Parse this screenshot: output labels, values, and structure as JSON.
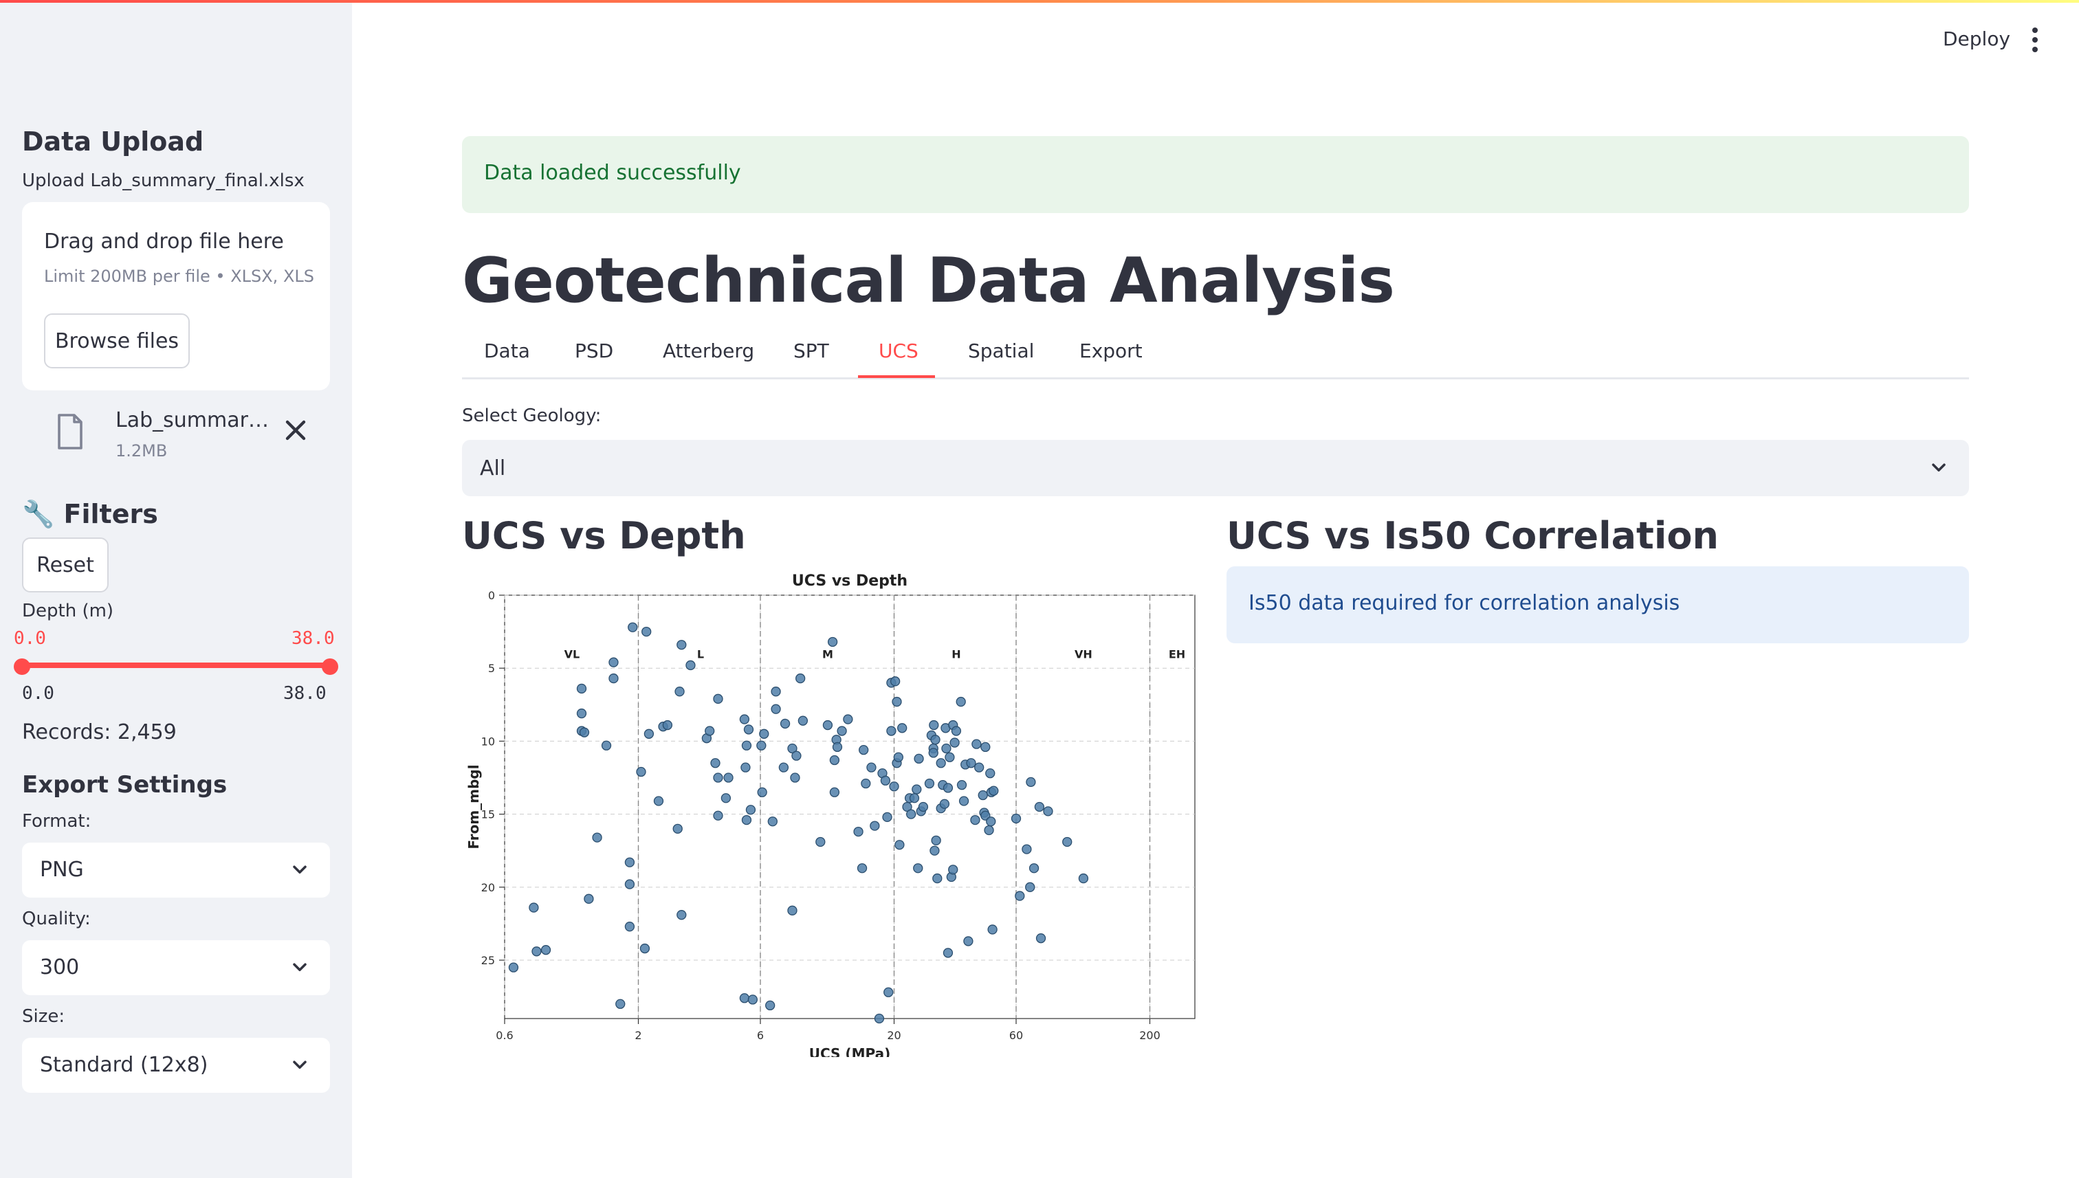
{
  "sidebar": {
    "upload_heading": "Data Upload",
    "upload_label": "Upload Lab_summary_final.xlsx",
    "dropzone_title": "Drag and drop file here",
    "dropzone_limit": "Limit 200MB per file • XLSX, XLS",
    "browse_label": "Browse files",
    "file_name": "Lab_summary_final.xlsx",
    "file_size": "1.2MB",
    "filters_heading": "🔧 Filters",
    "reset_label": "Reset",
    "depth_label": "Depth (m)",
    "depth_min": "0.0",
    "depth_max": "38.0",
    "depth_range_min": "0.0",
    "depth_range_max": "38.0",
    "records": "Records: 2,459",
    "export_heading": "Export Settings",
    "format_label": "Format:",
    "format_value": "PNG",
    "quality_label": "Quality:",
    "quality_value": "300",
    "size_label": "Size:",
    "size_value": "Standard (12x8)",
    "colors": {
      "accent": "#ff4b4b",
      "background": "#f0f2f6"
    }
  },
  "header": {
    "deploy_label": "Deploy"
  },
  "main": {
    "success_message": "Data loaded successfully",
    "title": "Geotechnical Data Analysis",
    "tabs": [
      {
        "label": "Data"
      },
      {
        "label": "PSD"
      },
      {
        "label": "Atterberg"
      },
      {
        "label": "SPT"
      },
      {
        "label": "UCS"
      },
      {
        "label": "Spatial"
      },
      {
        "label": "Export"
      }
    ],
    "active_tab": "UCS",
    "geology_label": "Select Geology:",
    "geology_value": "All",
    "left_heading": "UCS vs Depth",
    "right_heading": "UCS vs Is50 Correlation",
    "info_message": "Is50 data required for correlation analysis"
  },
  "chart_data": {
    "type": "scatter",
    "title": "UCS vs Depth",
    "xlabel": "UCS (MPa)",
    "ylabel": "From_mbgl",
    "x_scale": "log",
    "xlim": [
      0.6,
      300
    ],
    "ylim": [
      29,
      0
    ],
    "x_ticks": [
      "0.6",
      "2",
      "6",
      "20",
      "60",
      "200"
    ],
    "y_ticks": [
      "0",
      "5",
      "10",
      "15",
      "20",
      "25"
    ],
    "grid": true,
    "strength_boundaries": [
      2,
      6,
      20,
      60,
      200
    ],
    "strength_classes": [
      {
        "label": "VL",
        "x": 1.1
      },
      {
        "label": "L",
        "x": 3.5
      },
      {
        "label": "M",
        "x": 11
      },
      {
        "label": "H",
        "x": 35
      },
      {
        "label": "VH",
        "x": 110
      },
      {
        "label": "EH",
        "x": 330
      }
    ],
    "point_color": "#4f7ea8",
    "points": [
      [
        0.65,
        25.5
      ],
      [
        0.78,
        21.4
      ],
      [
        0.8,
        24.4
      ],
      [
        0.87,
        24.3
      ],
      [
        1.2,
        6.4
      ],
      [
        1.2,
        8.1
      ],
      [
        1.2,
        9.3
      ],
      [
        1.23,
        9.4
      ],
      [
        1.28,
        20.8
      ],
      [
        1.38,
        16.6
      ],
      [
        1.5,
        10.3
      ],
      [
        1.6,
        4.6
      ],
      [
        1.6,
        5.7
      ],
      [
        1.7,
        28
      ],
      [
        1.85,
        18.3
      ],
      [
        1.85,
        19.8
      ],
      [
        1.85,
        22.7
      ],
      [
        1.9,
        2.2
      ],
      [
        2.05,
        12.1
      ],
      [
        2.12,
        24.2
      ],
      [
        2.15,
        2.5
      ],
      [
        2.2,
        9.5
      ],
      [
        2.4,
        14.1
      ],
      [
        2.5,
        9
      ],
      [
        2.6,
        8.9
      ],
      [
        2.85,
        16
      ],
      [
        2.9,
        6.6
      ],
      [
        2.95,
        21.9
      ],
      [
        2.95,
        3.4
      ],
      [
        3.2,
        4.8
      ],
      [
        3.7,
        9.8
      ],
      [
        3.8,
        9.3
      ],
      [
        4.0,
        11.5
      ],
      [
        4.1,
        7.1
      ],
      [
        4.1,
        12.5
      ],
      [
        4.1,
        15.1
      ],
      [
        4.4,
        13.9
      ],
      [
        4.5,
        12.5
      ],
      [
        5.2,
        27.6
      ],
      [
        5.2,
        8.5
      ],
      [
        5.3,
        15.4
      ],
      [
        5.25,
        11.8
      ],
      [
        5.3,
        10.3
      ],
      [
        5.4,
        9.2
      ],
      [
        5.5,
        14.7
      ],
      [
        5.6,
        27.7
      ],
      [
        6.05,
        10.3
      ],
      [
        6.1,
        13.5
      ],
      [
        6.2,
        9.5
      ],
      [
        6.55,
        28.1
      ],
      [
        6.7,
        15.5
      ],
      [
        6.9,
        6.6
      ],
      [
        6.9,
        7.8
      ],
      [
        7.4,
        11.8
      ],
      [
        7.5,
        8.8
      ],
      [
        8.0,
        21.6
      ],
      [
        8.0,
        10.5
      ],
      [
        8.2,
        12.5
      ],
      [
        8.3,
        11.0
      ],
      [
        8.6,
        5.7
      ],
      [
        8.8,
        8.6
      ],
      [
        10.3,
        16.9
      ],
      [
        11.0,
        8.9
      ],
      [
        11.5,
        3.2
      ],
      [
        11.7,
        11.3
      ],
      [
        11.7,
        13.5
      ],
      [
        11.9,
        9.9
      ],
      [
        12.0,
        10.4
      ],
      [
        12.5,
        9.3
      ],
      [
        13.2,
        8.5
      ],
      [
        14.5,
        16.2
      ],
      [
        15.0,
        18.7
      ],
      [
        15.2,
        10.6
      ],
      [
        15.5,
        12.9
      ],
      [
        16.3,
        11.8
      ],
      [
        16.8,
        15.8
      ],
      [
        17.5,
        29
      ],
      [
        18.0,
        12.2
      ],
      [
        18.5,
        12.7
      ],
      [
        18.8,
        15.2
      ],
      [
        19.0,
        27.2
      ],
      [
        19.5,
        6.0
      ],
      [
        19.5,
        9.3
      ],
      [
        20.0,
        13.1
      ],
      [
        20.2,
        5.9
      ],
      [
        20.5,
        11.5
      ],
      [
        20.5,
        7.3
      ],
      [
        20.8,
        11.1
      ],
      [
        21.0,
        17.1
      ],
      [
        21.5,
        9.1
      ],
      [
        22.5,
        14.5
      ],
      [
        23.0,
        13.9
      ],
      [
        23.3,
        15.0
      ],
      [
        24.0,
        13.9
      ],
      [
        24.5,
        13.3
      ],
      [
        24.8,
        18.7
      ],
      [
        25.0,
        11.2
      ],
      [
        25.5,
        14.8
      ],
      [
        26.0,
        14.5
      ],
      [
        27.5,
        12.9
      ],
      [
        28.0,
        9.6
      ],
      [
        28.5,
        10.5
      ],
      [
        28.5,
        10.8
      ],
      [
        28.6,
        8.9
      ],
      [
        28.8,
        17.5
      ],
      [
        29.0,
        9.9
      ],
      [
        29.2,
        16.8
      ],
      [
        29.5,
        19.4
      ],
      [
        30.5,
        11.5
      ],
      [
        30.5,
        14.6
      ],
      [
        31.0,
        13.0
      ],
      [
        31.5,
        14.3
      ],
      [
        31.8,
        9.1
      ],
      [
        32.0,
        10.5
      ],
      [
        32.5,
        24.5
      ],
      [
        32.5,
        13.2
      ],
      [
        33.0,
        11.1
      ],
      [
        33.5,
        19.3
      ],
      [
        34.0,
        18.8
      ],
      [
        34.0,
        8.9
      ],
      [
        34.5,
        10.1
      ],
      [
        35.0,
        9.3
      ],
      [
        36.5,
        7.3
      ],
      [
        36.8,
        13.0
      ],
      [
        37.5,
        14.1
      ],
      [
        38.0,
        11.6
      ],
      [
        39.0,
        23.7
      ],
      [
        40.0,
        11.5
      ],
      [
        41.5,
        15.4
      ],
      [
        42.0,
        10.2
      ],
      [
        43.0,
        11.8
      ],
      [
        44.5,
        13.7
      ],
      [
        45.0,
        14.9
      ],
      [
        45.5,
        15.1
      ],
      [
        45.5,
        10.4
      ],
      [
        47.0,
        16.1
      ],
      [
        47.5,
        12.2
      ],
      [
        47.8,
        15.5
      ],
      [
        48.0,
        13.5
      ],
      [
        48.5,
        22.9
      ],
      [
        49.0,
        13.4
      ],
      [
        60.0,
        15.3
      ],
      [
        62.0,
        20.6
      ],
      [
        66.0,
        17.4
      ],
      [
        68.0,
        20.0
      ],
      [
        68.5,
        12.8
      ],
      [
        70.5,
        18.7
      ],
      [
        74.0,
        14.5
      ],
      [
        75.0,
        23.5
      ],
      [
        80.0,
        14.8
      ],
      [
        95.0,
        16.9
      ],
      [
        110.0,
        19.4
      ]
    ]
  }
}
